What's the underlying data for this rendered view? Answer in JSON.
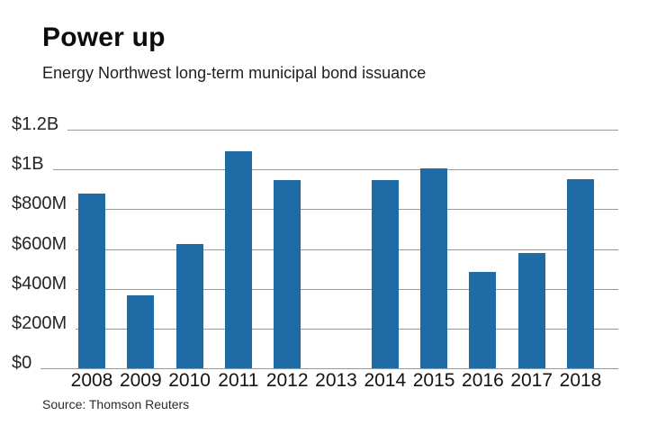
{
  "header": {
    "title": "Power up",
    "subtitle": "Energy Northwest long-term municipal bond issuance"
  },
  "footer": {
    "source": "Source: Thomson Reuters"
  },
  "chart_data": {
    "type": "bar",
    "title": "Power up",
    "subtitle": "Energy Northwest long-term municipal bond issuance",
    "source": "Source: Thomson Reuters",
    "categories": [
      "2008",
      "2009",
      "2010",
      "2011",
      "2012",
      "2013",
      "2014",
      "2015",
      "2016",
      "2017",
      "2018"
    ],
    "values": [
      880,
      365,
      625,
      1090,
      945,
      0,
      945,
      1005,
      485,
      580,
      950
    ],
    "values_unit": "USD millions",
    "xlabel": "",
    "ylabel": "",
    "ylim": [
      0,
      1200
    ],
    "y_ticks": [
      {
        "label": "$1.2B",
        "value": 1200
      },
      {
        "label": "$1B",
        "value": 1000
      },
      {
        "label": "$800M",
        "value": 800
      },
      {
        "label": "$600M",
        "value": 600
      },
      {
        "label": "$400M",
        "value": 400
      },
      {
        "label": "$200M",
        "value": 200
      },
      {
        "label": "$0",
        "value": 0
      }
    ],
    "grid": true,
    "legend": false,
    "bar_color": "#1F6BA5",
    "grid_color": "#999999",
    "text_color": "#141414"
  }
}
